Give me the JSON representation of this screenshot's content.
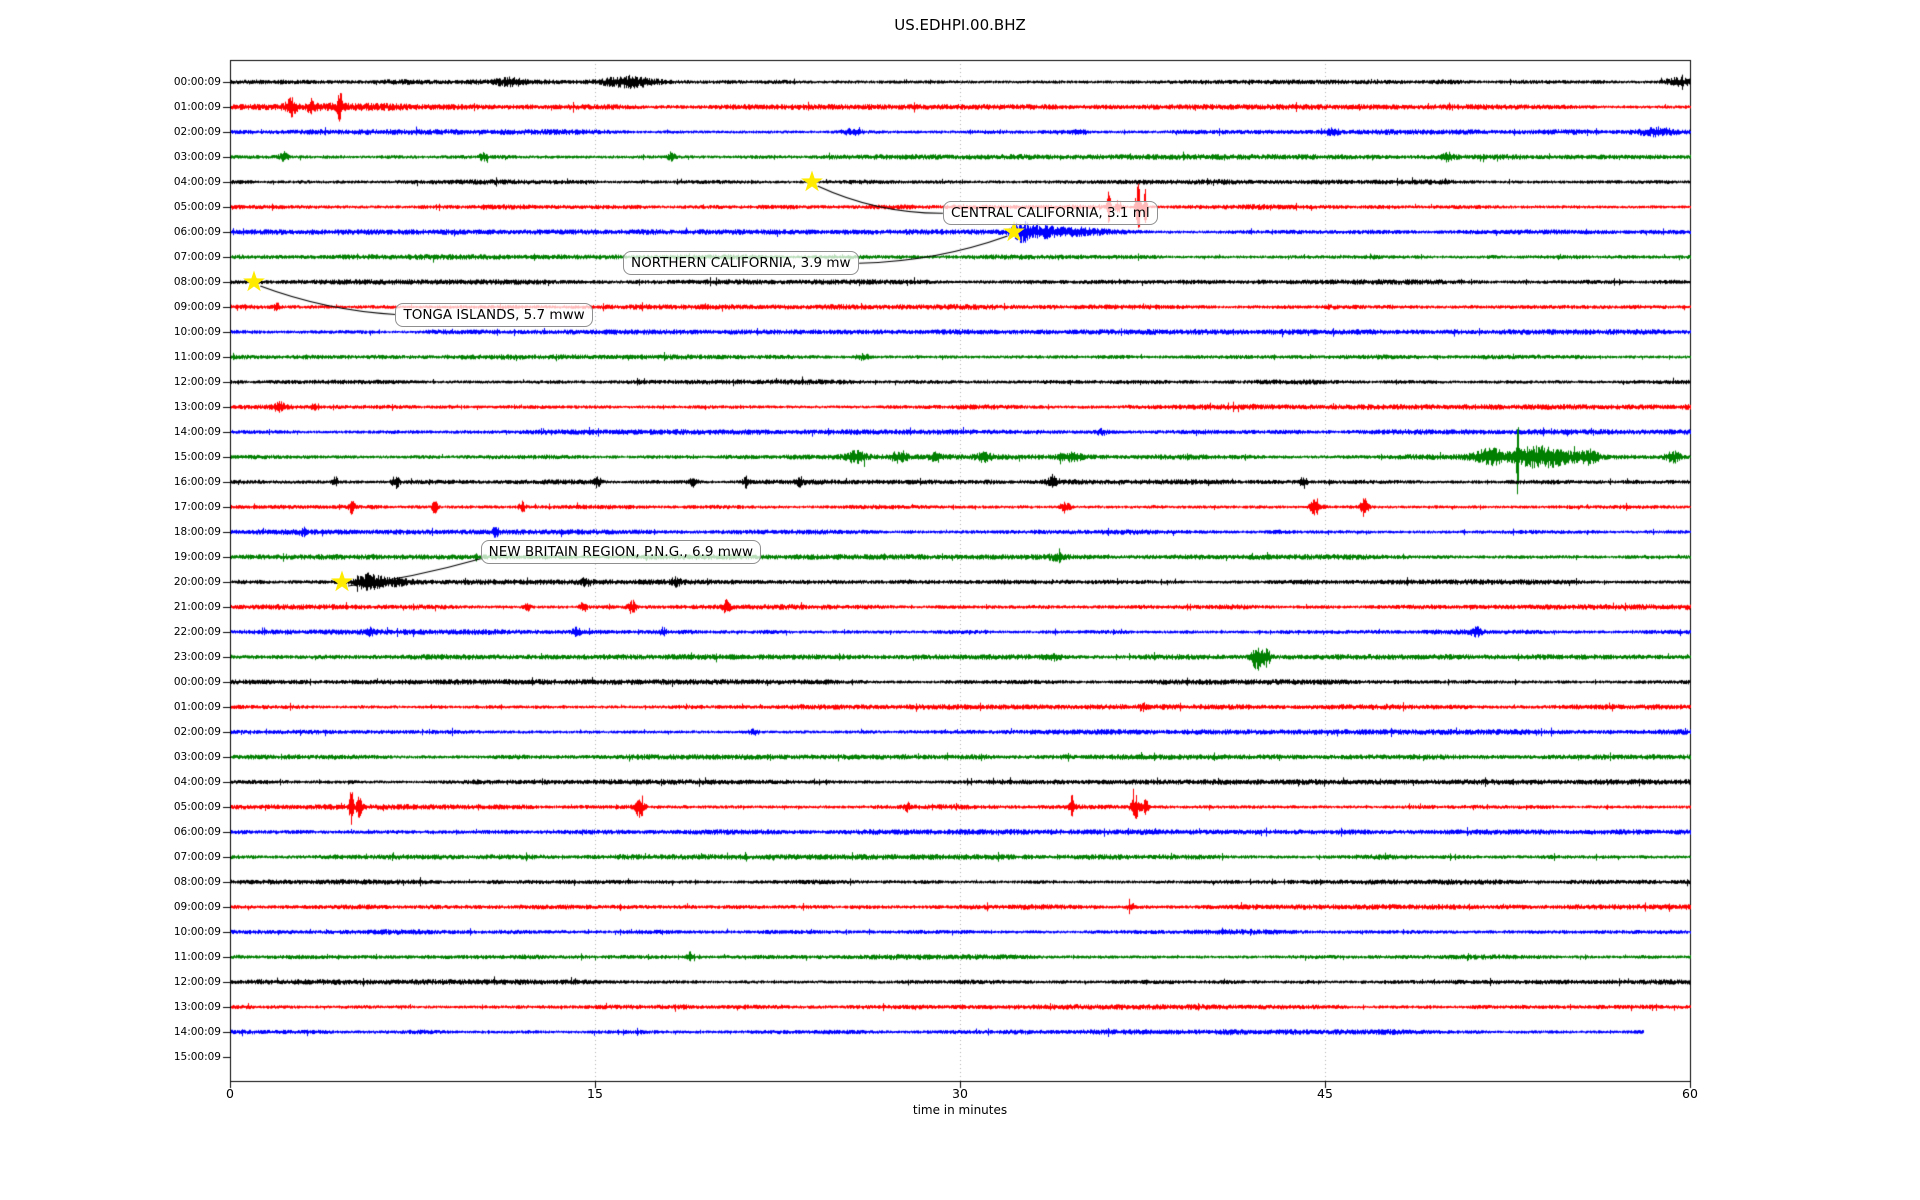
{
  "chart_data": {
    "type": "line",
    "subtype": "seismogram_dayplot",
    "title": "US.EDHPI.00.BHZ",
    "xlabel": "time in minutes",
    "ylabel": "",
    "xlim": [
      0,
      60
    ],
    "x_ticks": [
      0,
      15,
      30,
      45,
      60
    ],
    "grid": {
      "vertical_ticks": [
        15,
        30,
        45
      ],
      "color": "#b0b0b0",
      "style": "dotted"
    },
    "legend": "none",
    "trace_color_cycle": [
      "#000000",
      "#ff0000",
      "#0000ff",
      "#008000"
    ],
    "marker_color": "#ffeb00",
    "rows": [
      {
        "label": "00:00:09",
        "color": "#000000",
        "has_trace": true,
        "end_minute": 60,
        "bursts": [
          [
            11.5,
            0.4,
            3
          ],
          [
            16.3,
            0.7,
            6
          ],
          [
            59.5,
            0.4,
            4
          ]
        ]
      },
      {
        "label": "01:00:09",
        "color": "#ff0000",
        "has_trace": true,
        "end_minute": 60,
        "bursts": [
          [
            4,
            3,
            1.5
          ],
          [
            2.5,
            0.15,
            7
          ],
          [
            3.3,
            0.1,
            6
          ],
          [
            4.5,
            0.06,
            18
          ]
        ]
      },
      {
        "label": "02:00:09",
        "color": "#0000ff",
        "has_trace": true,
        "end_minute": 60,
        "bursts": [
          [
            25.5,
            0.3,
            2.5
          ],
          [
            34.9,
            0.2,
            2
          ],
          [
            45.3,
            0.2,
            2.5
          ],
          [
            58.6,
            0.6,
            3.5
          ]
        ]
      },
      {
        "label": "03:00:09",
        "color": "#008000",
        "has_trace": true,
        "end_minute": 60,
        "bursts": [
          [
            2.2,
            0.12,
            5
          ],
          [
            10.4,
            0.12,
            4
          ],
          [
            18.1,
            0.12,
            4
          ],
          [
            50,
            0.15,
            3.5
          ]
        ]
      },
      {
        "label": "04:00:09",
        "color": "#000000",
        "has_trace": true,
        "end_minute": 60,
        "bursts": []
      },
      {
        "label": "05:00:09",
        "color": "#ff0000",
        "has_trace": true,
        "end_minute": 60,
        "bursts": [
          [
            36.1,
            0.05,
            20
          ],
          [
            36.5,
            0.1,
            6
          ],
          [
            37.3,
            0.07,
            26
          ],
          [
            37.6,
            0.05,
            18
          ]
        ]
      },
      {
        "label": "06:00:09",
        "color": "#0000ff",
        "has_trace": true,
        "end_minute": 60,
        "bursts": [
          [
            32.5,
            0.25,
            7
          ],
          [
            33.3,
            0.6,
            4
          ],
          [
            35,
            1,
            2.5
          ]
        ]
      },
      {
        "label": "07:00:09",
        "color": "#008000",
        "has_trace": true,
        "end_minute": 60,
        "bursts": []
      },
      {
        "label": "08:00:09",
        "color": "#000000",
        "has_trace": true,
        "end_minute": 60,
        "bursts": []
      },
      {
        "label": "09:00:09",
        "color": "#ff0000",
        "has_trace": true,
        "end_minute": 60,
        "bursts": [
          [
            1.9,
            0.1,
            4
          ]
        ]
      },
      {
        "label": "10:00:09",
        "color": "#0000ff",
        "has_trace": true,
        "end_minute": 60,
        "bursts": []
      },
      {
        "label": "11:00:09",
        "color": "#008000",
        "has_trace": true,
        "end_minute": 60,
        "bursts": [
          [
            26,
            0.2,
            2.5
          ]
        ]
      },
      {
        "label": "12:00:09",
        "color": "#000000",
        "has_trace": true,
        "end_minute": 60,
        "bursts": []
      },
      {
        "label": "13:00:09",
        "color": "#ff0000",
        "has_trace": true,
        "end_minute": 60,
        "bursts": [
          [
            2,
            0.15,
            4
          ],
          [
            3.5,
            0.1,
            3
          ]
        ]
      },
      {
        "label": "14:00:09",
        "color": "#0000ff",
        "has_trace": true,
        "end_minute": 60,
        "bursts": [
          [
            35.8,
            0.15,
            3
          ]
        ]
      },
      {
        "label": "15:00:09",
        "color": "#008000",
        "has_trace": true,
        "end_minute": 60,
        "bursts": [
          [
            25.7,
            0.3,
            5
          ],
          [
            27.5,
            0.2,
            5
          ],
          [
            29,
            0.15,
            5
          ],
          [
            31,
            0.2,
            4
          ],
          [
            34.5,
            0.3,
            4
          ],
          [
            51.8,
            0.5,
            7
          ],
          [
            52.9,
            0.03,
            42
          ],
          [
            53.5,
            0.5,
            8
          ],
          [
            54.5,
            0.5,
            7
          ],
          [
            55.8,
            0.3,
            6
          ],
          [
            59.3,
            0.2,
            5
          ]
        ]
      },
      {
        "label": "16:00:09",
        "color": "#000000",
        "has_trace": true,
        "end_minute": 60,
        "bursts": [
          [
            4.3,
            0.08,
            5
          ],
          [
            6.8,
            0.1,
            6
          ],
          [
            15.1,
            0.1,
            5
          ],
          [
            19,
            0.15,
            5
          ],
          [
            21.2,
            0.1,
            5
          ],
          [
            23.4,
            0.1,
            4
          ],
          [
            33.8,
            0.2,
            4
          ],
          [
            44.1,
            0.1,
            5
          ]
        ]
      },
      {
        "label": "17:00:09",
        "color": "#ff0000",
        "has_trace": true,
        "end_minute": 60,
        "bursts": [
          [
            5,
            0.08,
            6
          ],
          [
            8.4,
            0.08,
            7
          ],
          [
            12,
            0.1,
            5
          ],
          [
            34.3,
            0.15,
            5
          ],
          [
            44.6,
            0.15,
            8
          ],
          [
            46.6,
            0.1,
            9
          ]
        ]
      },
      {
        "label": "18:00:09",
        "color": "#0000ff",
        "has_trace": true,
        "end_minute": 60,
        "bursts": [
          [
            3,
            0.1,
            3
          ],
          [
            10.9,
            0.1,
            4
          ]
        ]
      },
      {
        "label": "19:00:09",
        "color": "#008000",
        "has_trace": true,
        "end_minute": 60,
        "bursts": [
          [
            34,
            0.2,
            3.5
          ]
        ]
      },
      {
        "label": "20:00:09",
        "color": "#000000",
        "has_trace": true,
        "end_minute": 60,
        "bursts": [
          [
            5.6,
            0.3,
            7
          ],
          [
            6.5,
            0.5,
            4
          ],
          [
            14.6,
            0.15,
            3
          ],
          [
            18.3,
            0.15,
            3.5
          ]
        ]
      },
      {
        "label": "21:00:09",
        "color": "#ff0000",
        "has_trace": true,
        "end_minute": 60,
        "bursts": [
          [
            12.2,
            0.1,
            4
          ],
          [
            14.5,
            0.1,
            5
          ],
          [
            16.5,
            0.12,
            6
          ],
          [
            20.4,
            0.1,
            7
          ]
        ]
      },
      {
        "label": "22:00:09",
        "color": "#0000ff",
        "has_trace": true,
        "end_minute": 60,
        "bursts": [
          [
            5.8,
            0.1,
            4
          ],
          [
            14.2,
            0.12,
            4
          ],
          [
            17.8,
            0.1,
            3.5
          ],
          [
            51.2,
            0.12,
            4
          ]
        ]
      },
      {
        "label": "23:00:09",
        "color": "#008000",
        "has_trace": true,
        "end_minute": 60,
        "bursts": [
          [
            33.8,
            0.2,
            3
          ],
          [
            42.2,
            0.15,
            13
          ],
          [
            42.6,
            0.1,
            8
          ]
        ]
      },
      {
        "label": "00:00:09",
        "color": "#000000",
        "has_trace": true,
        "end_minute": 60,
        "bursts": []
      },
      {
        "label": "01:00:09",
        "color": "#ff0000",
        "has_trace": true,
        "end_minute": 60,
        "bursts": [
          [
            37.5,
            0.1,
            3.5
          ]
        ]
      },
      {
        "label": "02:00:09",
        "color": "#0000ff",
        "has_trace": true,
        "end_minute": 60,
        "bursts": [
          [
            21.5,
            0.15,
            3
          ]
        ]
      },
      {
        "label": "03:00:09",
        "color": "#008000",
        "has_trace": true,
        "end_minute": 60,
        "bursts": []
      },
      {
        "label": "04:00:09",
        "color": "#000000",
        "has_trace": true,
        "end_minute": 60,
        "bursts": []
      },
      {
        "label": "05:00:09",
        "color": "#ff0000",
        "has_trace": true,
        "end_minute": 60,
        "bursts": [
          [
            4.97,
            0.05,
            20
          ],
          [
            5.3,
            0.08,
            9
          ],
          [
            16.8,
            0.12,
            10
          ],
          [
            27.8,
            0.1,
            4
          ],
          [
            34.6,
            0.07,
            11
          ],
          [
            37.2,
            0.12,
            12
          ],
          [
            37.6,
            0.08,
            8
          ]
        ]
      },
      {
        "label": "06:00:09",
        "color": "#0000ff",
        "has_trace": true,
        "end_minute": 60,
        "bursts": []
      },
      {
        "label": "07:00:09",
        "color": "#008000",
        "has_trace": true,
        "end_minute": 60,
        "bursts": []
      },
      {
        "label": "08:00:09",
        "color": "#000000",
        "has_trace": true,
        "end_minute": 60,
        "bursts": []
      },
      {
        "label": "09:00:09",
        "color": "#ff0000",
        "has_trace": true,
        "end_minute": 60,
        "bursts": [
          [
            37,
            0.1,
            4
          ]
        ]
      },
      {
        "label": "10:00:09",
        "color": "#0000ff",
        "has_trace": true,
        "end_minute": 60,
        "bursts": []
      },
      {
        "label": "11:00:09",
        "color": "#008000",
        "has_trace": true,
        "end_minute": 60,
        "bursts": [
          [
            18.9,
            0.1,
            4
          ]
        ]
      },
      {
        "label": "12:00:09",
        "color": "#000000",
        "has_trace": true,
        "end_minute": 60,
        "bursts": []
      },
      {
        "label": "13:00:09",
        "color": "#ff0000",
        "has_trace": true,
        "end_minute": 60,
        "bursts": []
      },
      {
        "label": "14:00:09",
        "color": "#0000ff",
        "has_trace": true,
        "end_minute": 58.1,
        "bursts": []
      },
      {
        "label": "15:00:09",
        "color": "#008000",
        "has_trace": false,
        "end_minute": 0,
        "bursts": []
      }
    ],
    "events": [
      {
        "text": "CENTRAL CALIFORNIA, 3.1 ml",
        "region": "CENTRAL CALIFORNIA",
        "magnitude": "3.1 ml",
        "row_index": 4,
        "row_label": "04:00:09",
        "minute": 23.9,
        "label_minute": 29.3,
        "label_row": 5.25
      },
      {
        "text": "NORTHERN CALIFORNIA, 3.9 mw",
        "region": "NORTHERN CALIFORNIA",
        "magnitude": "3.9 mw",
        "row_index": 6,
        "row_label": "06:00:09",
        "minute": 32.2,
        "label_minute": 16.15,
        "label_row": 7.25
      },
      {
        "text": "TONGA ISLANDS, 5.7 mww",
        "region": "TONGA ISLANDS",
        "magnitude": "5.7 mww",
        "row_index": 8,
        "row_label": "08:00:09",
        "minute": 1.0,
        "label_minute": 6.8,
        "label_row": 9.3
      },
      {
        "text": "NEW BRITAIN REGION, P.N.G., 6.9 mww",
        "region": "NEW BRITAIN REGION, P.N.G.",
        "magnitude": "6.9 mww",
        "row_index": 20,
        "row_label": "20:00:09",
        "minute": 4.6,
        "label_minute": 10.3,
        "label_row": 18.8
      }
    ]
  }
}
